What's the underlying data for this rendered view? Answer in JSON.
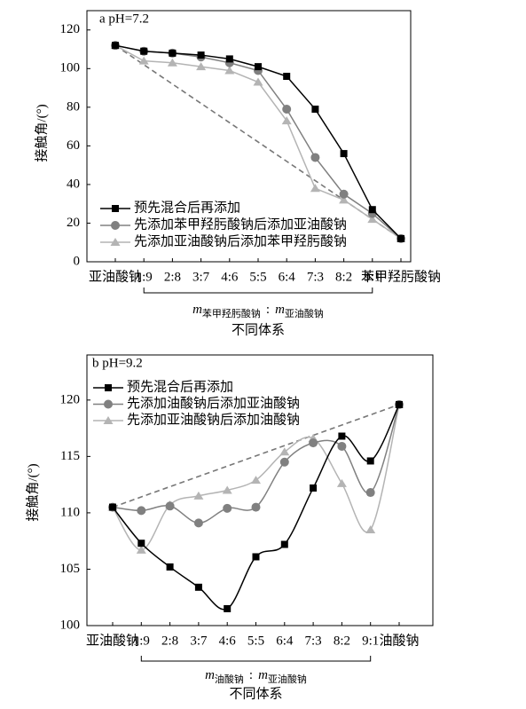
{
  "chart_data": [
    {
      "type": "line",
      "annotation": "a  pH=7.2",
      "ylabel": "接触角/(°)",
      "categories": [
        "亚油酸钠",
        "1:9",
        "2:8",
        "3:7",
        "4:6",
        "5:5",
        "6:4",
        "7:3",
        "8:2",
        "9:1",
        "苯甲羟肟酸钠"
      ],
      "xlabel": {
        "symbol": "m",
        "sub1": "苯甲羟肟酸钠",
        "separator": ":",
        "sub2": "亚油酸钠"
      },
      "xgroup_label": "不同体系",
      "ylim": [
        0,
        130
      ],
      "yticks": [
        0,
        20,
        40,
        60,
        80,
        100,
        120
      ],
      "smooth": false,
      "series": [
        {
          "name": "预先混合后再添加",
          "color": "#000000",
          "marker": "square",
          "values": [
            112,
            109,
            108,
            107,
            105,
            101,
            96,
            79,
            56,
            27,
            12
          ]
        },
        {
          "name": "先添加苯甲羟肟酸钠后添加亚油酸钠",
          "color": "#808080",
          "marker": "circle",
          "values": [
            112,
            109,
            108,
            106,
            103,
            99,
            79,
            54,
            35,
            25,
            12
          ]
        },
        {
          "name": "先添加亚油酸钠后添加苯甲羟肟酸钠",
          "color": "#b4b4b4",
          "marker": "triangle",
          "values": [
            112,
            104,
            103,
            101,
            99,
            93,
            73,
            38,
            32,
            22,
            12
          ]
        }
      ]
    },
    {
      "type": "line",
      "annotation": "b  pH=9.2",
      "ylabel": "接触角/(°)",
      "categories": [
        "亚油酸钠",
        "1:9",
        "2:8",
        "3:7",
        "4:6",
        "5:5",
        "6:4",
        "7:3",
        "8:2",
        "9:1",
        "油酸钠"
      ],
      "xlabel": {
        "symbol": "m",
        "sub1": "油酸钠",
        "separator": ":",
        "sub2": "亚油酸钠"
      },
      "xgroup_label": "不同体系",
      "ylim": [
        100,
        124
      ],
      "yticks": [
        100,
        105,
        110,
        115,
        120
      ],
      "smooth": true,
      "series": [
        {
          "name": "预先混合后再添加",
          "color": "#000000",
          "marker": "square",
          "values": [
            110.5,
            107.3,
            105.2,
            103.4,
            101.5,
            106.1,
            107.2,
            112.2,
            116.8,
            114.6,
            119.6
          ]
        },
        {
          "name": "先添加油酸钠后添加亚油酸钠",
          "color": "#808080",
          "marker": "circle",
          "values": [
            110.5,
            110.2,
            110.6,
            109.1,
            110.4,
            110.5,
            114.5,
            116.2,
            115.9,
            111.8,
            119.6
          ]
        },
        {
          "name": "先添加亚油酸钠后添加油酸钠",
          "color": "#b4b4b4",
          "marker": "triangle",
          "values": [
            110.5,
            106.7,
            110.7,
            111.5,
            112.0,
            112.9,
            115.4,
            116.6,
            112.6,
            108.5,
            119.6
          ]
        }
      ]
    }
  ]
}
